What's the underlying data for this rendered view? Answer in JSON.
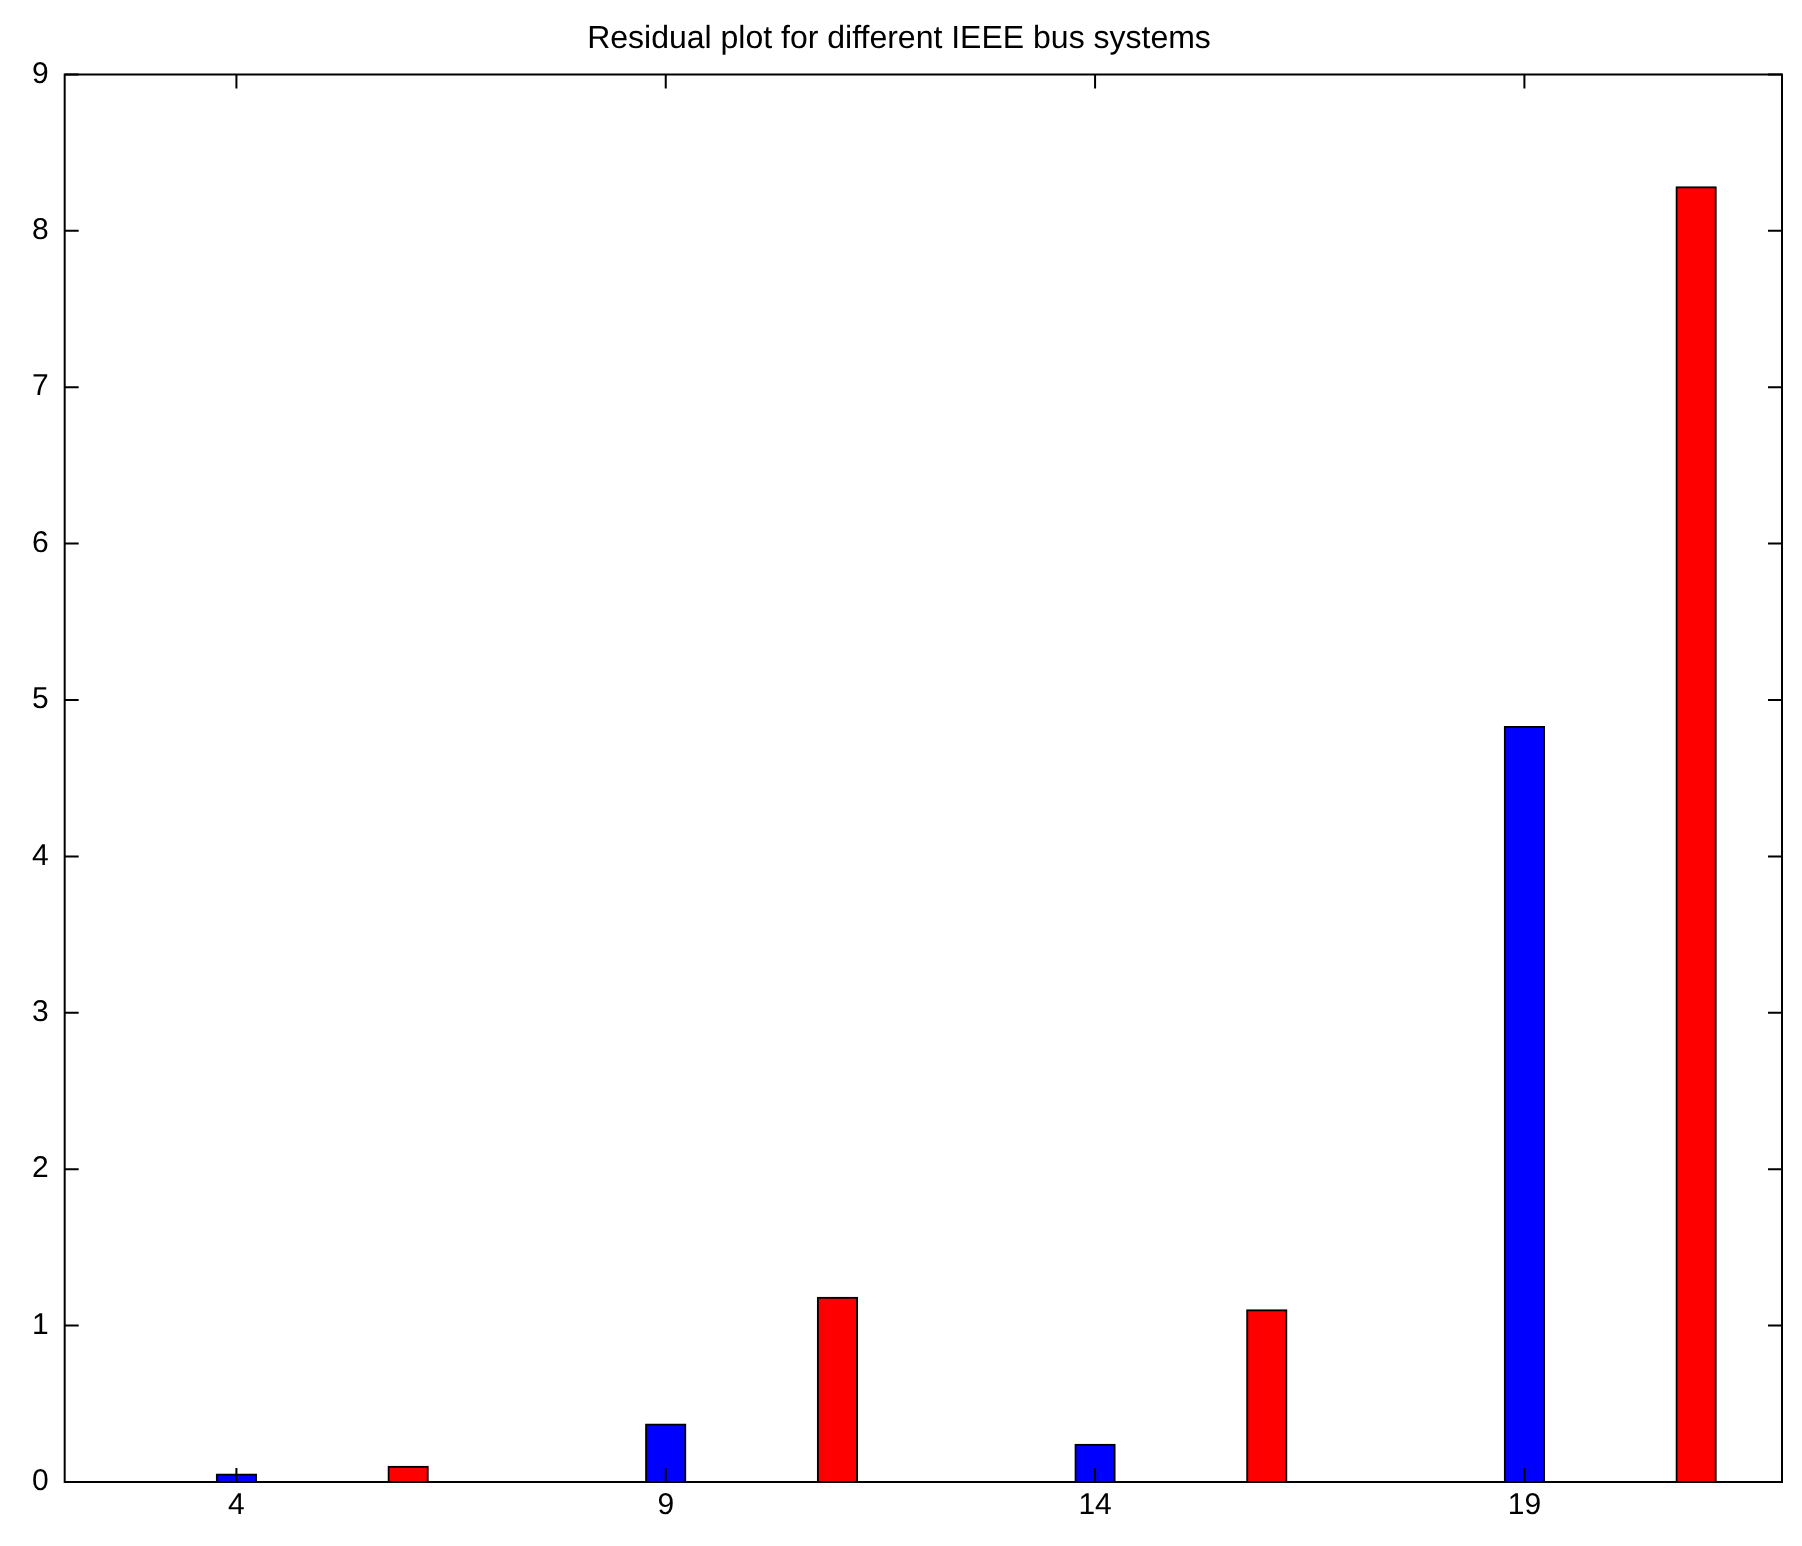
{
  "chart_data": {
    "type": "bar",
    "title": "Residual plot for different IEEE bus systems",
    "xlim": [
      2,
      22
    ],
    "xticks": [
      4,
      9,
      14,
      19
    ],
    "ylim": [
      0,
      9
    ],
    "yticks": [
      0,
      1,
      2,
      3,
      4,
      5,
      6,
      7,
      8,
      9
    ],
    "grid": false,
    "legend": false,
    "series": [
      {
        "color": "#0000ff",
        "x": [
          4,
          9,
          14,
          19
        ],
        "values": [
          0.05,
          0.37,
          0.24,
          4.83
        ]
      },
      {
        "color": "#ff0000",
        "x": [
          6,
          11,
          16,
          21
        ],
        "values": [
          0.1,
          1.18,
          1.1,
          8.28
        ]
      }
    ]
  }
}
